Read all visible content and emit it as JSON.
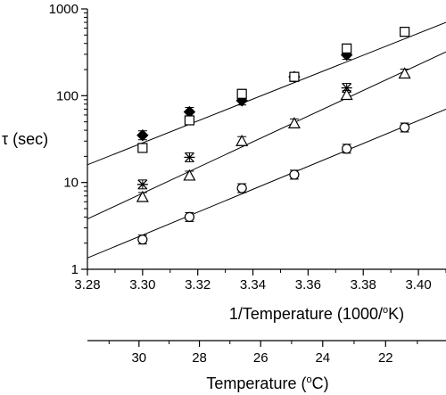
{
  "chart_data": {
    "type": "scatter",
    "title": "",
    "ylabel": "τ (sec)",
    "y_scale": "log",
    "ylim": [
      1,
      1000
    ],
    "y_ticks": [
      1,
      10,
      100,
      1000
    ],
    "y_tick_labels": [
      "1",
      "10",
      "100",
      "1000"
    ],
    "xlim": [
      3.28,
      3.41
    ],
    "x_ticks": [
      3.28,
      3.3,
      3.32,
      3.34,
      3.36,
      3.38,
      3.4
    ],
    "x_tick_labels": [
      "3.28",
      "3.30",
      "3.32",
      "3.34",
      "3.36",
      "3.38",
      "3.40"
    ],
    "xlabel": {
      "main": "1/Temperature (1000/",
      "sup": "o",
      "tail": "K)"
    },
    "secondary_x_axis": {
      "label": {
        "main": "Temperature (",
        "sup": "o",
        "tail": "C)"
      },
      "ticks": [
        30,
        28,
        26,
        24,
        22
      ],
      "tick_labels": [
        "30",
        "28",
        "26",
        "24",
        "22"
      ]
    },
    "grid": false,
    "series": [
      {
        "marker": "filled-diamond",
        "x": [
          3.3,
          3.317,
          3.336,
          3.355,
          3.374
        ],
        "y": [
          35,
          65,
          88,
          165,
          295
        ]
      },
      {
        "marker": "open-square",
        "x": [
          3.3,
          3.317,
          3.336,
          3.355,
          3.374,
          3.395
        ],
        "y": [
          25,
          52,
          105,
          165,
          350,
          545
        ]
      },
      {
        "marker": "asterisk",
        "x": [
          3.3,
          3.317,
          3.374
        ],
        "y": [
          9.5,
          19.5,
          123
        ]
      },
      {
        "marker": "open-triangle",
        "x": [
          3.3,
          3.317,
          3.336,
          3.355,
          3.374,
          3.395
        ],
        "y": [
          6.8,
          12,
          30,
          48,
          102,
          180
        ]
      },
      {
        "marker": "open-circle",
        "x": [
          3.3,
          3.317,
          3.336,
          3.355,
          3.374,
          3.395
        ],
        "y": [
          2.2,
          4.0,
          8.6,
          12.3,
          24.5,
          43
        ]
      }
    ],
    "fit_lines": [
      {
        "x": [
          3.28,
          3.41
        ],
        "y": [
          16,
          700
        ]
      },
      {
        "x": [
          3.28,
          3.41
        ],
        "y": [
          3.8,
          320
        ]
      },
      {
        "x": [
          3.28,
          3.41
        ],
        "y": [
          1.35,
          70
        ]
      }
    ]
  }
}
